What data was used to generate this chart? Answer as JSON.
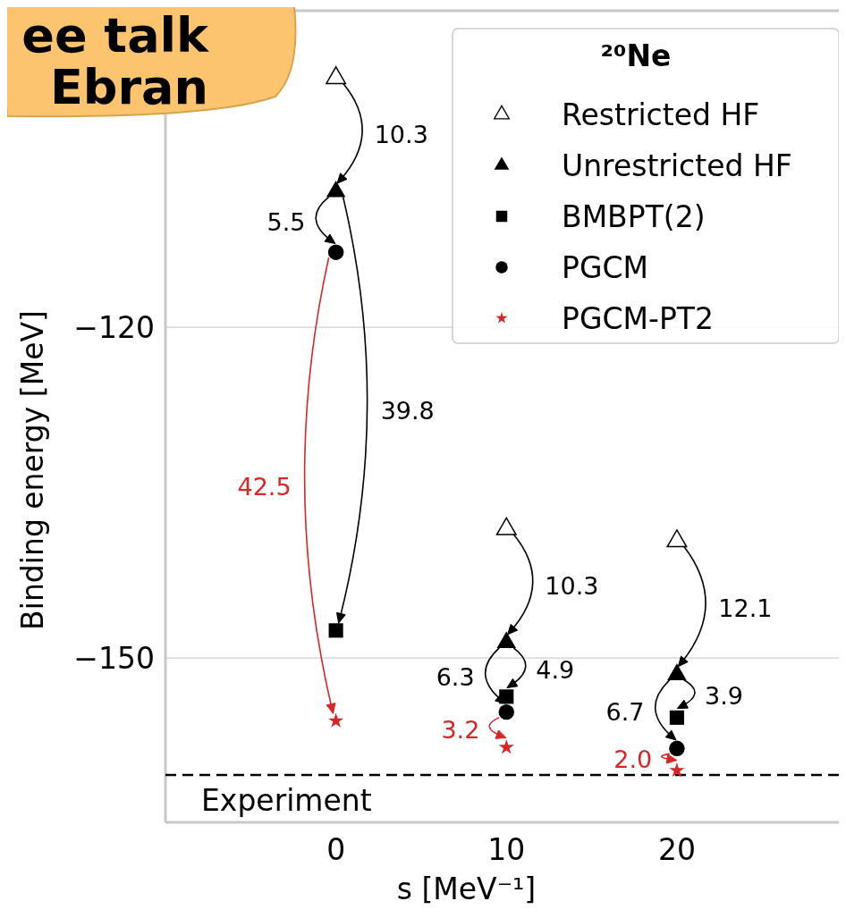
{
  "chart_data": {
    "type": "scatter",
    "xlabel": "s [MeV⁻¹]",
    "ylabel": "Binding energy [MeV]",
    "legend_title": "²⁰Ne",
    "legend": "top right",
    "grid": "y",
    "xlim": [
      -10,
      29.5
    ],
    "ylim": [
      -164.9,
      -91.3
    ],
    "xticks": [
      0,
      10,
      20
    ],
    "yticks": [
      {
        "value": -120,
        "label": "−120"
      },
      {
        "value": -150,
        "label": "−150"
      }
    ],
    "x": [
      0,
      10,
      20
    ],
    "series": [
      {
        "name": "Restricted HF",
        "color": "#000000",
        "marker": "triangle",
        "values": [
          -97.4,
          -138.3,
          -139.4
        ]
      },
      {
        "name": "Unrestricted HF",
        "color": "#000000",
        "marker": "triangle",
        "values": [
          -107.7,
          -148.6,
          -151.5
        ]
      },
      {
        "name": "BMBPT(2)",
        "color": "#000000",
        "marker": "square",
        "values": [
          -147.5,
          -153.5,
          -155.4
        ]
      },
      {
        "name": "PGCM",
        "color": "#000000",
        "marker": "circle",
        "values": [
          -113.2,
          -154.9,
          -158.2
        ]
      },
      {
        "name": "PGCM-PT2",
        "color": "#d62728",
        "marker": "star",
        "values": [
          -155.7,
          -158.1,
          -160.2
        ]
      }
    ],
    "ref_lines": [
      {
        "axis": "y",
        "value": -160.6,
        "label": "Experiment",
        "color": "#000000",
        "line_style": "dashed"
      }
    ],
    "annotations": [
      "ee talk\nEbran",
      {
        "text": "10.3",
        "x": 0,
        "y": -107.7
      },
      {
        "text": "5.5",
        "x": 0,
        "y": -113.2
      },
      "39.8",
      "42.5",
      {
        "text": "10.3",
        "x": 10,
        "y": -148.6
      },
      {
        "text": "6.3",
        "x": 10,
        "y": -154.9
      },
      {
        "text": "4.9",
        "x": 10,
        "y": -153.5
      },
      {
        "text": "3.2",
        "x": 10,
        "y": -158.1
      },
      {
        "text": "12.1",
        "x": 20,
        "y": -151.5
      },
      {
        "text": "6.7",
        "x": 20,
        "y": -158.2
      },
      {
        "text": "3.9",
        "x": 20,
        "y": -155.4
      },
      {
        "text": "2.0",
        "x": 20,
        "y": -160.2
      }
    ]
  }
}
